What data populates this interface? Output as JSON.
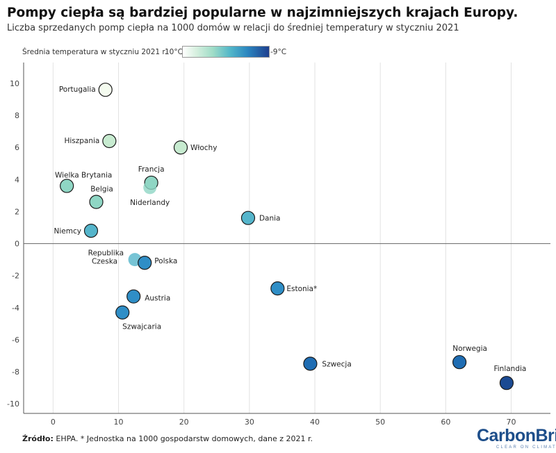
{
  "header": {
    "title": "Pompy ciepła są bardziej popularne w najzimniejszych krajach Europy.",
    "subtitle": "Liczba sprzedanych pomp ciepła na 1000 domów w relacji do średniej temperatury w styczniu 2021"
  },
  "legend": {
    "label": "Średnia temperatura w styczniu 2021 r.",
    "min_label": "10°C",
    "max_label": "-9°C"
  },
  "footer": {
    "source_bold": "Źródło:",
    "source_text": " EHPA. * Jednostka na 1000 gospodarstw domowych, dane z 2021 r.",
    "logo_main": "CarbonBrief",
    "logo_tag": "CLEAR ON CLIMATE"
  },
  "colors": {
    "temp_scale": [
      "#f4fbef",
      "#c7ebd0",
      "#8fd6c4",
      "#55b5cb",
      "#2f8ec6",
      "#1f6db3",
      "#1b4a93"
    ]
  },
  "chart_data": {
    "type": "scatter",
    "title": "Pompy ciepła są bardziej popularne w najzimniejszych krajach Europy.",
    "xlabel": "",
    "ylabel": "",
    "xlim": [
      -4.5,
      76
    ],
    "ylim": [
      -10.6,
      11.3
    ],
    "xticks": [
      0,
      10,
      20,
      30,
      40,
      50,
      60,
      70
    ],
    "yticks": [
      10,
      8,
      6,
      4,
      2,
      0,
      -2,
      -4,
      -6,
      -8,
      -10
    ],
    "grid": true,
    "points": [
      {
        "name": "Portugalia",
        "x": 8.0,
        "y": 9.6,
        "temp": 10
      },
      {
        "name": "Hiszpania",
        "x": 8.6,
        "y": 6.4,
        "temp": 7
      },
      {
        "name": "Włochy",
        "x": 19.5,
        "y": 6.0,
        "temp": 6
      },
      {
        "name": "Wielka Brytania",
        "x": 2.1,
        "y": 3.6,
        "temp": 4
      },
      {
        "name": "Francja",
        "x": 15.0,
        "y": 3.8,
        "temp": 5
      },
      {
        "name": "Niderlandy",
        "x": 14.8,
        "y": 3.5,
        "temp": 3
      },
      {
        "name": "Belgia",
        "x": 6.6,
        "y": 2.6,
        "temp": 3
      },
      {
        "name": "Niemcy",
        "x": 5.8,
        "y": 0.8,
        "temp": 0
      },
      {
        "name": "Dania",
        "x": 29.8,
        "y": 1.6,
        "temp": 0
      },
      {
        "name": "Republika Czeska",
        "x": 12.5,
        "y": -1.0,
        "temp": -1
      },
      {
        "name": "Polska",
        "x": 14.0,
        "y": -1.2,
        "temp": -2
      },
      {
        "name": "Austria",
        "x": 12.3,
        "y": -3.3,
        "temp": -2
      },
      {
        "name": "Szwajcaria",
        "x": 10.6,
        "y": -4.3,
        "temp": -3
      },
      {
        "name": "Estonia*",
        "x": 34.3,
        "y": -2.8,
        "temp": -4
      },
      {
        "name": "Szwecja",
        "x": 39.3,
        "y": -7.5,
        "temp": -6
      },
      {
        "name": "Norwegia",
        "x": 62.1,
        "y": -7.4,
        "temp": -7
      },
      {
        "name": "Finlandia",
        "x": 69.3,
        "y": -8.7,
        "temp": -9
      }
    ]
  }
}
